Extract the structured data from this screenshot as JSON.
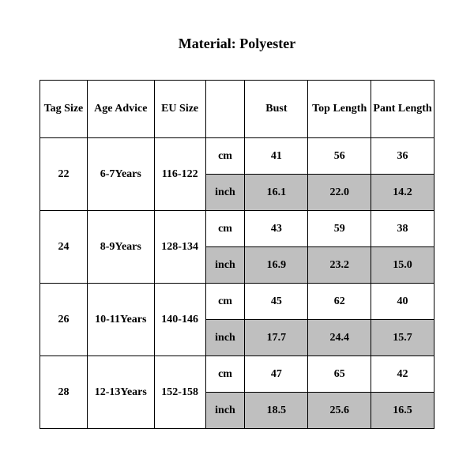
{
  "title": "Material: Polyester",
  "table": {
    "columns": [
      "Tag Size",
      "Age Advice",
      "EU Size",
      "",
      "Bust",
      "Top Length",
      "Pant Length"
    ],
    "units": [
      "cm",
      "inch"
    ],
    "rows": [
      {
        "tag": "22",
        "age": "6-7Years",
        "eu": "116-122",
        "cm": {
          "bust": "41",
          "top": "56",
          "pant": "36"
        },
        "inch": {
          "bust": "16.1",
          "top": "22.0",
          "pant": "14.2"
        }
      },
      {
        "tag": "24",
        "age": "8-9Years",
        "eu": "128-134",
        "cm": {
          "bust": "43",
          "top": "59",
          "pant": "38"
        },
        "inch": {
          "bust": "16.9",
          "top": "23.2",
          "pant": "15.0"
        }
      },
      {
        "tag": "26",
        "age": "10-11Years",
        "eu": "140-146",
        "cm": {
          "bust": "45",
          "top": "62",
          "pant": "40"
        },
        "inch": {
          "bust": "17.7",
          "top": "24.4",
          "pant": "15.7"
        }
      },
      {
        "tag": "28",
        "age": "12-13Years",
        "eu": "152-158",
        "cm": {
          "bust": "47",
          "top": "65",
          "pant": "42"
        },
        "inch": {
          "bust": "18.5",
          "top": "25.6",
          "pant": "16.5"
        }
      }
    ],
    "colors": {
      "background": "#ffffff",
      "shade": "#bfbfbf",
      "border": "#000000",
      "text": "#000000"
    },
    "typography": {
      "title_fontsize": 18,
      "cell_fontsize": 14,
      "font_family": "Times New Roman",
      "weight": "bold"
    }
  }
}
